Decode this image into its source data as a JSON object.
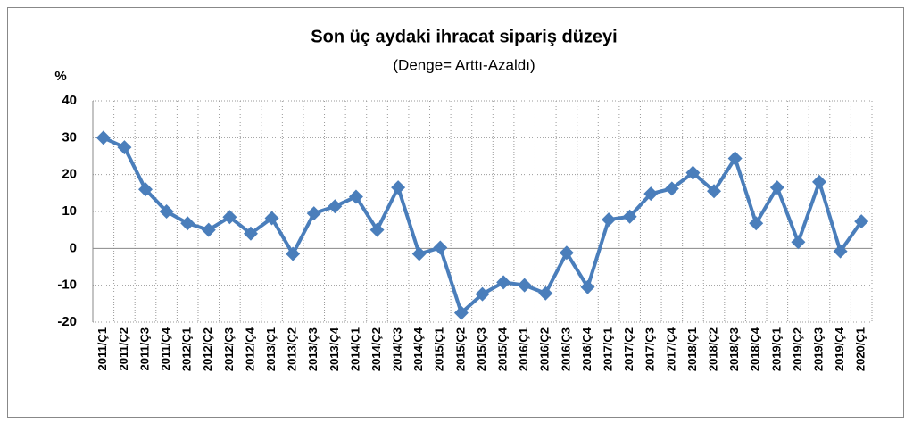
{
  "chart_data": {
    "type": "line",
    "title": "Son üç aydaki ihracat sipariş düzeyi",
    "subtitle": "(Denge= Arttı-Azaldı)",
    "y_label": "%",
    "categories": [
      "2011/Ç1",
      "2011/Ç2",
      "2011/Ç3",
      "2011/Ç4",
      "2012/Ç1",
      "2012/Ç2",
      "2012/Ç3",
      "2012/Ç4",
      "2013/Ç1",
      "2013/Ç2",
      "2013/Ç3",
      "2013/Ç4",
      "2014/Ç1",
      "2014/Ç2",
      "2014/Ç3",
      "2014/Ç4",
      "2015/Ç1",
      "2015/Ç2",
      "2015/Ç3",
      "2015/Ç4",
      "2016/Ç1",
      "2016/Ç2",
      "2016/Ç3",
      "2016/Ç4",
      "2017/Ç1",
      "2017/Ç2",
      "2017/Ç3",
      "2017/Ç4",
      "2018/Ç1",
      "2018/Ç2",
      "2018/Ç3",
      "2018/Ç4",
      "2019/Ç1",
      "2019/Ç2",
      "2019/Ç3",
      "2019/Ç4",
      "2020/Ç1"
    ],
    "values": [
      30,
      27.4,
      16,
      10,
      6.8,
      5,
      8.5,
      4,
      8.2,
      -1.5,
      9.5,
      11.4,
      14,
      5,
      16.5,
      -1.5,
      0.2,
      -17.5,
      -12.4,
      -9.2,
      -10,
      -12.2,
      -1.2,
      -10.5,
      7.8,
      8.6,
      14.8,
      16.2,
      20.5,
      15.5,
      24.4,
      6.8,
      16.5,
      1.7,
      18,
      -0.8,
      7.3
    ],
    "color": "#4a7ebb",
    "ylim": [
      -20,
      40
    ],
    "yticks": [
      -20,
      -10,
      0,
      10,
      20,
      30,
      40
    ],
    "grid": true
  }
}
